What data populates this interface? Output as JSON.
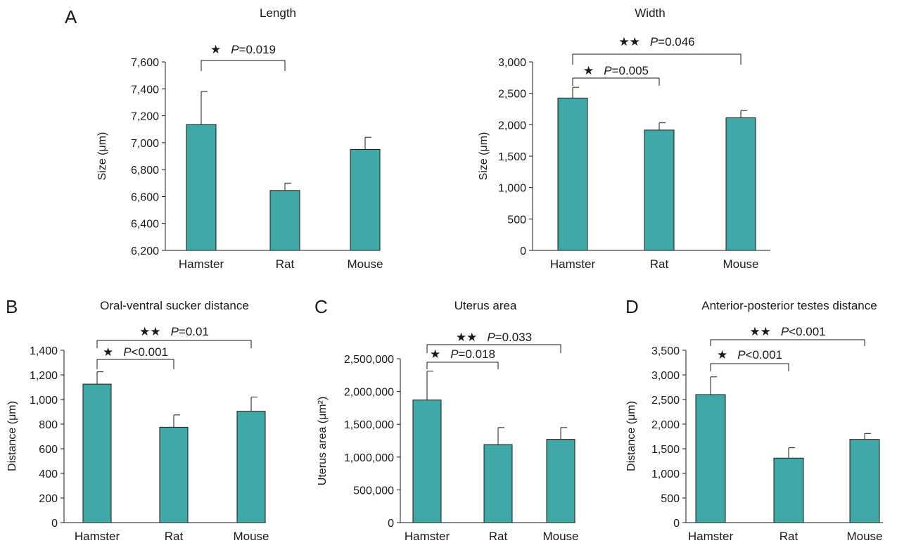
{
  "figure": {
    "bar_color": "#41a8a8",
    "star_glyph": "★"
  },
  "chart_data": [
    {
      "type": "bar",
      "panel": "A",
      "title": "Length",
      "ylabel": "Size (μm)",
      "categories": [
        "Hamster",
        "Rat",
        "Mouse"
      ],
      "values": [
        7135,
        6645,
        6950
      ],
      "errors": [
        245,
        55,
        90
      ],
      "ylim": [
        6200,
        7600
      ],
      "yticks": [
        6200,
        6400,
        6600,
        6800,
        7000,
        7200,
        7400,
        7600
      ],
      "ytick_labels": [
        "6,200",
        "6,400",
        "6,600",
        "6,800",
        "7,000",
        "7,200",
        "7,400",
        "7,600"
      ],
      "grid": false,
      "significance": [
        {
          "from": 0,
          "to": 1,
          "stars": "★",
          "p_label": "P",
          "p_text": "=0.019"
        }
      ]
    },
    {
      "type": "bar",
      "panel": "",
      "title": "Width",
      "ylabel": "Size (μm)",
      "categories": [
        "Hamster",
        "Rat",
        "Mouse"
      ],
      "values": [
        2425,
        1915,
        2110
      ],
      "errors": [
        170,
        115,
        115
      ],
      "ylim": [
        0,
        3000
      ],
      "yticks": [
        0,
        500,
        1000,
        1500,
        2000,
        2500,
        3000
      ],
      "ytick_labels": [
        "0",
        "500",
        "1,000",
        "1,500",
        "2,000",
        "2,500",
        "3,000"
      ],
      "grid": false,
      "significance": [
        {
          "from": 0,
          "to": 1,
          "stars": "★",
          "p_label": "P",
          "p_text": "=0.005"
        },
        {
          "from": 0,
          "to": 2,
          "stars": "★★",
          "p_label": "P",
          "p_text": "=0.046"
        }
      ]
    },
    {
      "type": "bar",
      "panel": "B",
      "title": "Oral-ventral sucker distance",
      "ylabel": "Distance (μm)",
      "categories": [
        "Hamster",
        "Rat",
        "Mouse"
      ],
      "values": [
        1125,
        775,
        905
      ],
      "errors": [
        100,
        100,
        115
      ],
      "ylim": [
        0,
        1400
      ],
      "yticks": [
        0,
        200,
        400,
        600,
        800,
        1000,
        1200,
        1400
      ],
      "ytick_labels": [
        "0",
        "200",
        "400",
        "600",
        "800",
        "1,000",
        "1,200",
        "1,400"
      ],
      "grid": false,
      "significance": [
        {
          "from": 0,
          "to": 1,
          "stars": "★",
          "p_label": "P",
          "p_text": "<0.001"
        },
        {
          "from": 0,
          "to": 2,
          "stars": "★★",
          "p_label": "P",
          "p_text": "=0.01"
        }
      ]
    },
    {
      "type": "bar",
      "panel": "C",
      "title": "Uterus area",
      "ylabel": "Uterus area (μm²)",
      "categories": [
        "Hamster",
        "Rat",
        "Mouse"
      ],
      "values": [
        1870000,
        1190000,
        1270000
      ],
      "errors": [
        440000,
        260000,
        180000
      ],
      "ylim": [
        0,
        2500000
      ],
      "yticks": [
        0,
        500000,
        1000000,
        1500000,
        2000000,
        2500000
      ],
      "ytick_labels": [
        "0",
        "500,000",
        "1,000,000",
        "1,500,000",
        "2,000,000",
        "2,500,000"
      ],
      "grid": false,
      "significance": [
        {
          "from": 0,
          "to": 1,
          "stars": "★",
          "p_label": "P",
          "p_text": "=0.018"
        },
        {
          "from": 0,
          "to": 2,
          "stars": "★★",
          "p_label": "P",
          "p_text": "=0.033"
        }
      ]
    },
    {
      "type": "bar",
      "panel": "D",
      "title": "Anterior-posterior testes distance",
      "ylabel": "Distance (μm)",
      "categories": [
        "Hamster",
        "Rat",
        "Mouse"
      ],
      "values": [
        2600,
        1310,
        1690
      ],
      "errors": [
        360,
        210,
        120
      ],
      "ylim": [
        0,
        3500
      ],
      "yticks": [
        0,
        500,
        1000,
        1500,
        2000,
        2500,
        3000,
        3500
      ],
      "ytick_labels": [
        "0",
        "500",
        "1,000",
        "1,500",
        "2,000",
        "2,500",
        "3,000",
        "3,500"
      ],
      "grid": false,
      "significance": [
        {
          "from": 0,
          "to": 1,
          "stars": "★",
          "p_label": "P",
          "p_text": "<0.001"
        },
        {
          "from": 0,
          "to": 2,
          "stars": "★★",
          "p_label": "P",
          "p_text": "<0.001"
        }
      ]
    }
  ]
}
